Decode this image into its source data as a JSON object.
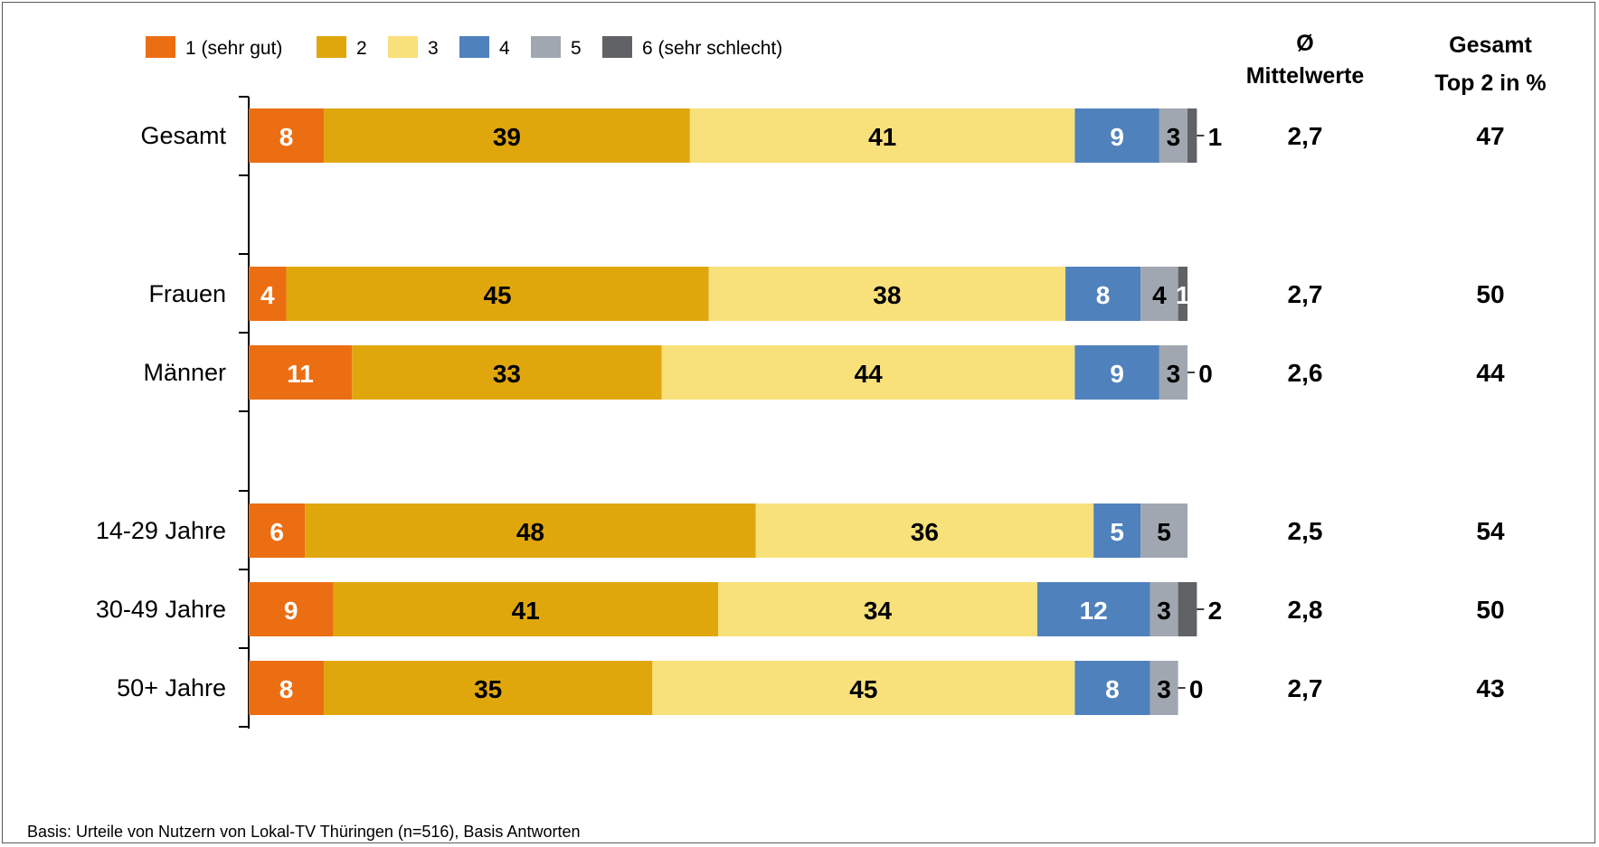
{
  "chart_data": {
    "type": "bar",
    "orientation": "horizontal",
    "stacked": true,
    "legend_placement": "top-left",
    "grid": false,
    "xlim": [
      0,
      100
    ],
    "legend": [
      {
        "name": "1 (sehr gut)",
        "color": "#EC6E12"
      },
      {
        "name": "2",
        "color": "#E0A70D"
      },
      {
        "name": "3",
        "color": "#F8E07A"
      },
      {
        "name": "4",
        "color": "#4F81BD"
      },
      {
        "name": "5",
        "color": "#A0A7B0"
      },
      {
        "name": "6 (sehr schlecht)",
        "color": "#616265"
      }
    ],
    "categories": [
      "Gesamt",
      "Frauen",
      "Männer",
      "14-29 Jahre",
      "30-49 Jahre",
      "50+ Jahre"
    ],
    "series": [
      {
        "name": "1 (sehr gut)",
        "values": [
          8,
          4,
          11,
          6,
          9,
          8
        ]
      },
      {
        "name": "2",
        "values": [
          39,
          45,
          33,
          48,
          41,
          35
        ]
      },
      {
        "name": "3",
        "values": [
          41,
          38,
          44,
          36,
          34,
          45
        ]
      },
      {
        "name": "4",
        "values": [
          9,
          8,
          9,
          5,
          12,
          8
        ]
      },
      {
        "name": "5",
        "values": [
          3,
          4,
          3,
          5,
          3,
          3
        ]
      },
      {
        "name": "6 (sehr schlecht)",
        "values": [
          1,
          1,
          0,
          0,
          2,
          0
        ]
      }
    ],
    "value_labels": [
      [
        "8",
        "39",
        "41",
        "9",
        "3",
        "1"
      ],
      [
        "4",
        "45",
        "38",
        "8",
        "4",
        "1"
      ],
      [
        "11",
        "33",
        "44",
        "9",
        "3",
        "0"
      ],
      [
        "6",
        "48",
        "36",
        "5",
        "5",
        ""
      ],
      [
        "9",
        "41",
        "34",
        "12",
        "3",
        "2"
      ],
      [
        "8",
        "35",
        "45",
        "8",
        "3",
        "0"
      ]
    ],
    "columns": [
      {
        "header_line1": "Ø",
        "header_line2": "Mittelwerte",
        "values": [
          "2,7",
          "2,7",
          "2,6",
          "2,5",
          "2,8",
          "2,7"
        ]
      },
      {
        "header_line1": "Gesamt",
        "header_line2": "Top 2 in %",
        "values": [
          "47",
          "50",
          "44",
          "54",
          "50",
          "43"
        ]
      }
    ],
    "footnote": "Basis: Urteile von Nutzern von Lokal-TV Thüringen (n=516), Basis Antworten"
  }
}
